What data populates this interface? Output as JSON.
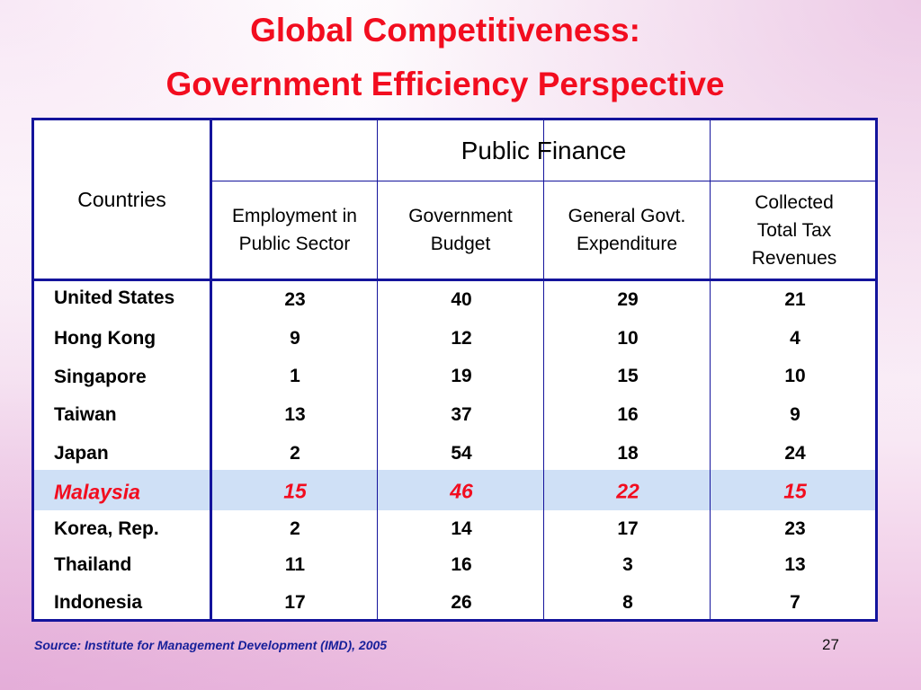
{
  "slide": {
    "title_line1": "Global Competitiveness:",
    "title_line2": "Government Efficiency Perspective",
    "source": "Source: Institute for Management Development (IMD), 2005",
    "page_number": "27",
    "colors": {
      "title": "#f20d1f",
      "border": "#14149c",
      "highlight_row_bg": "#cfe0f6",
      "highlight_text": "#f20d1f",
      "source_text": "#17209a"
    }
  },
  "table": {
    "group_header": "Public Finance",
    "row_header": "Countries",
    "columns": [
      "Employment in Public Sector",
      "Government Budget",
      "General Govt. Expenditure",
      "Collected Total Tax Revenues"
    ],
    "rows": [
      {
        "country": "United States",
        "values": [
          "23",
          "40",
          "29",
          "21"
        ]
      },
      {
        "country": "Hong Kong",
        "values": [
          "9",
          "12",
          "10",
          "4"
        ]
      },
      {
        "country": "Singapore",
        "values": [
          "1",
          "19",
          "15",
          "10"
        ]
      },
      {
        "country": "Taiwan",
        "values": [
          "13",
          "37",
          "16",
          "9"
        ]
      },
      {
        "country": "Japan",
        "values": [
          "2",
          "54",
          "18",
          "24"
        ]
      },
      {
        "country": "Malaysia",
        "values": [
          "15",
          "46",
          "22",
          "15"
        ],
        "highlighted": true
      },
      {
        "country": "Korea, Rep.",
        "values": [
          "2",
          "14",
          "17",
          "23"
        ]
      },
      {
        "country": "Thailand",
        "values": [
          "11",
          "16",
          "3",
          "13"
        ]
      },
      {
        "country": "Indonesia",
        "values": [
          "17",
          "26",
          "8",
          "7"
        ]
      }
    ]
  }
}
